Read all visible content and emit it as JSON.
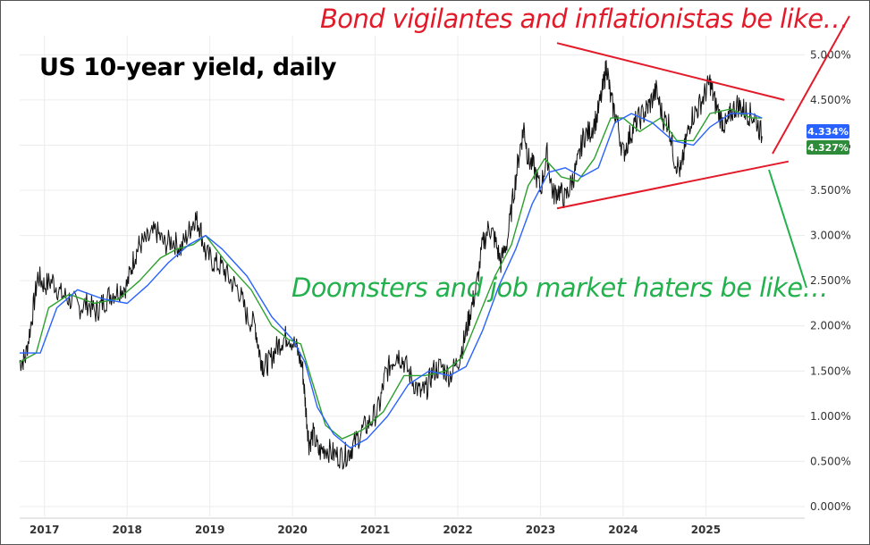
{
  "title": "US 10-year yield, daily",
  "annotations": {
    "bond": "Bond vigilantes and inflationistas be like…",
    "doom": "Doomsters and job market haters be like…"
  },
  "colors": {
    "price": "#111111",
    "ma_green": "#2ca02c",
    "ma_blue": "#2962ff",
    "trend": "#e21b2b",
    "arrow_up": "#e21b2b",
    "arrow_down": "#22b14c",
    "grid": "#ececec"
  },
  "chart_data": {
    "type": "line",
    "title": "US 10-year yield, daily",
    "xlabel": "",
    "ylabel": "",
    "x_ticks": [
      "2017",
      "2018",
      "2019",
      "2020",
      "2021",
      "2022",
      "2023",
      "2024",
      "2025"
    ],
    "y_ticks": [
      "0.000%",
      "0.500%",
      "1.000%",
      "1.500%",
      "2.000%",
      "2.500%",
      "3.000%",
      "3.500%",
      "4.000%",
      "4.500%",
      "5.000%"
    ],
    "ylim": [
      0,
      5.3
    ],
    "xlim": [
      2016.7,
      2025.85
    ],
    "grid": true,
    "series": [
      {
        "kind": "price",
        "x": [
          2016.7,
          2016.77,
          2016.85,
          2016.92,
          2017.0,
          2017.1,
          2017.2,
          2017.3,
          2017.42,
          2017.52,
          2017.62,
          2017.7,
          2017.8,
          2017.9,
          2018.0,
          2018.08,
          2018.15,
          2018.25,
          2018.35,
          2018.45,
          2018.55,
          2018.65,
          2018.75,
          2018.82,
          2018.88,
          2018.95,
          2019.05,
          2019.15,
          2019.25,
          2019.35,
          2019.45,
          2019.55,
          2019.6,
          2019.65,
          2019.72,
          2019.8,
          2019.88,
          2019.95,
          2020.05,
          2020.12,
          2020.16,
          2020.2,
          2020.25,
          2020.32,
          2020.4,
          2020.5,
          2020.6,
          2020.68,
          2020.75,
          2020.85,
          2020.95,
          2021.05,
          2021.12,
          2021.2,
          2021.27,
          2021.35,
          2021.45,
          2021.55,
          2021.62,
          2021.7,
          2021.8,
          2021.9,
          2022.0,
          2022.08,
          2022.15,
          2022.22,
          2022.3,
          2022.38,
          2022.45,
          2022.52,
          2022.6,
          2022.68,
          2022.75,
          2022.8,
          2022.85,
          2022.92,
          2023.0,
          2023.08,
          2023.15,
          2023.22,
          2023.3,
          2023.38,
          2023.45,
          2023.52,
          2023.6,
          2023.68,
          2023.75,
          2023.8,
          2023.85,
          2023.92,
          2024.0,
          2024.08,
          2024.15,
          2024.25,
          2024.32,
          2024.4,
          2024.48,
          2024.55,
          2024.62,
          2024.7,
          2024.75,
          2024.82,
          2024.9,
          2024.98,
          2025.05,
          2025.1,
          2025.18,
          2025.25,
          2025.3,
          2025.38,
          2025.45,
          2025.52,
          2025.6,
          2025.68
        ],
        "y": [
          1.6,
          1.65,
          2.1,
          2.55,
          2.45,
          2.5,
          2.35,
          2.3,
          2.2,
          2.25,
          2.15,
          2.25,
          2.35,
          2.4,
          2.45,
          2.75,
          2.9,
          2.95,
          3.05,
          2.9,
          2.95,
          2.85,
          3.05,
          3.2,
          3.1,
          2.8,
          2.7,
          2.65,
          2.5,
          2.4,
          2.1,
          2.0,
          1.7,
          1.55,
          1.6,
          1.75,
          1.85,
          1.9,
          1.75,
          1.55,
          1.1,
          0.7,
          0.8,
          0.6,
          0.65,
          0.58,
          0.55,
          0.6,
          0.7,
          0.85,
          0.95,
          1.1,
          1.45,
          1.6,
          1.7,
          1.6,
          1.4,
          1.25,
          1.3,
          1.5,
          1.55,
          1.45,
          1.6,
          1.85,
          2.15,
          2.4,
          2.9,
          3.1,
          2.95,
          2.7,
          2.95,
          3.5,
          3.95,
          4.2,
          3.85,
          3.75,
          3.5,
          3.9,
          3.45,
          3.5,
          3.4,
          3.6,
          3.8,
          4.1,
          4.15,
          4.3,
          4.6,
          4.9,
          4.5,
          4.3,
          3.9,
          4.1,
          4.25,
          4.35,
          4.45,
          4.6,
          4.3,
          4.25,
          3.85,
          3.7,
          4.0,
          4.3,
          4.4,
          4.55,
          4.7,
          4.5,
          4.3,
          4.2,
          4.35,
          4.45,
          4.4,
          4.35,
          4.3,
          4.1
        ]
      },
      {
        "kind": "ma_green",
        "x": [
          2016.7,
          2016.9,
          2017.05,
          2017.3,
          2017.6,
          2017.9,
          2018.15,
          2018.4,
          2018.6,
          2018.8,
          2018.95,
          2019.2,
          2019.5,
          2019.75,
          2019.95,
          2020.1,
          2020.25,
          2020.4,
          2020.6,
          2020.85,
          2021.1,
          2021.35,
          2021.6,
          2021.85,
          2022.05,
          2022.25,
          2022.45,
          2022.65,
          2022.85,
          2023.05,
          2023.25,
          2023.45,
          2023.65,
          2023.85,
          2024.0,
          2024.2,
          2024.45,
          2024.65,
          2024.85,
          2025.05,
          2025.3,
          2025.55,
          2025.68
        ],
        "y": [
          1.6,
          1.7,
          2.2,
          2.35,
          2.25,
          2.3,
          2.5,
          2.75,
          2.85,
          2.9,
          3.0,
          2.7,
          2.4,
          2.0,
          1.85,
          1.8,
          1.35,
          0.9,
          0.75,
          0.85,
          1.05,
          1.45,
          1.45,
          1.5,
          1.65,
          2.1,
          2.55,
          2.9,
          3.55,
          3.85,
          3.65,
          3.6,
          3.85,
          4.3,
          4.3,
          4.15,
          4.3,
          4.05,
          4.05,
          4.35,
          4.4,
          4.3,
          4.3
        ]
      },
      {
        "kind": "ma_blue",
        "x": [
          2016.7,
          2016.95,
          2017.15,
          2017.4,
          2017.7,
          2018.0,
          2018.25,
          2018.5,
          2018.75,
          2018.95,
          2019.15,
          2019.45,
          2019.75,
          2020.0,
          2020.15,
          2020.3,
          2020.5,
          2020.7,
          2020.9,
          2021.15,
          2021.4,
          2021.65,
          2021.9,
          2022.1,
          2022.3,
          2022.5,
          2022.7,
          2022.9,
          2023.1,
          2023.3,
          2023.5,
          2023.7,
          2023.9,
          2024.1,
          2024.35,
          2024.6,
          2024.85,
          2025.05,
          2025.3,
          2025.55,
          2025.68
        ],
        "y": [
          1.7,
          1.7,
          2.2,
          2.4,
          2.3,
          2.25,
          2.45,
          2.7,
          2.9,
          3.0,
          2.85,
          2.55,
          2.1,
          1.85,
          1.6,
          1.1,
          0.8,
          0.65,
          0.75,
          1.0,
          1.35,
          1.5,
          1.45,
          1.55,
          1.95,
          2.45,
          2.85,
          3.35,
          3.7,
          3.75,
          3.65,
          3.75,
          4.25,
          4.35,
          4.25,
          4.05,
          4.0,
          4.2,
          4.35,
          4.35,
          4.3
        ]
      }
    ],
    "trendlines": [
      {
        "x": [
          2023.2,
          2025.95
        ],
        "y": [
          5.13,
          4.5
        ]
      },
      {
        "x": [
          2023.2,
          2026.0
        ],
        "y": [
          3.3,
          3.82
        ]
      }
    ],
    "price_labels": [
      {
        "text": "4.334%",
        "value": 4.334,
        "color": "#2962ff"
      },
      {
        "text": "4.327%",
        "value": 4.327,
        "color": "#2e8b3a"
      }
    ]
  }
}
